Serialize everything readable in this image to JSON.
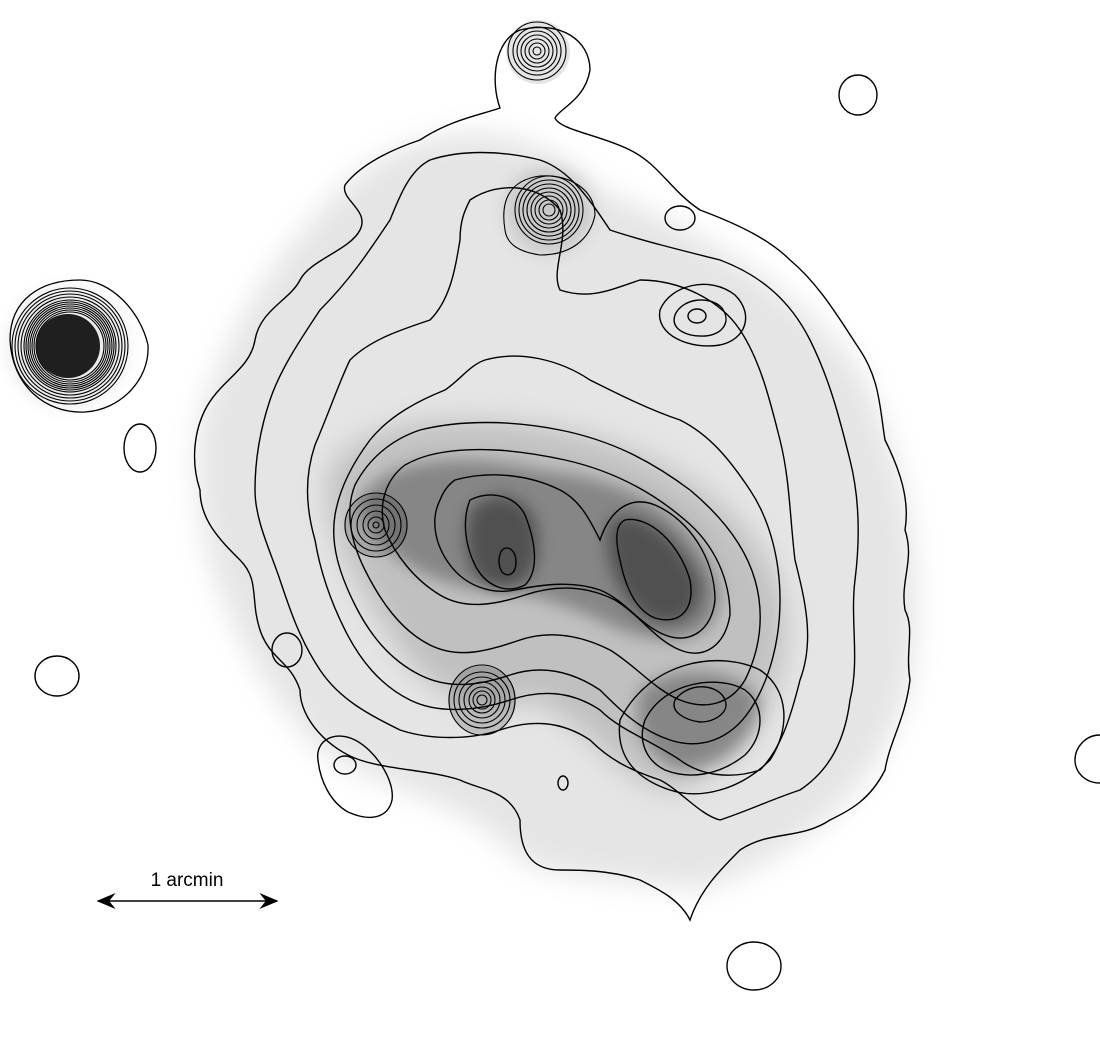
{
  "image": {
    "kind": "x-ray surface brightness contour map",
    "colors": {
      "background": "#ffffff",
      "contour": "#000000",
      "emission": "#000000"
    }
  },
  "scale_bar": {
    "label": "1 arcmin"
  }
}
